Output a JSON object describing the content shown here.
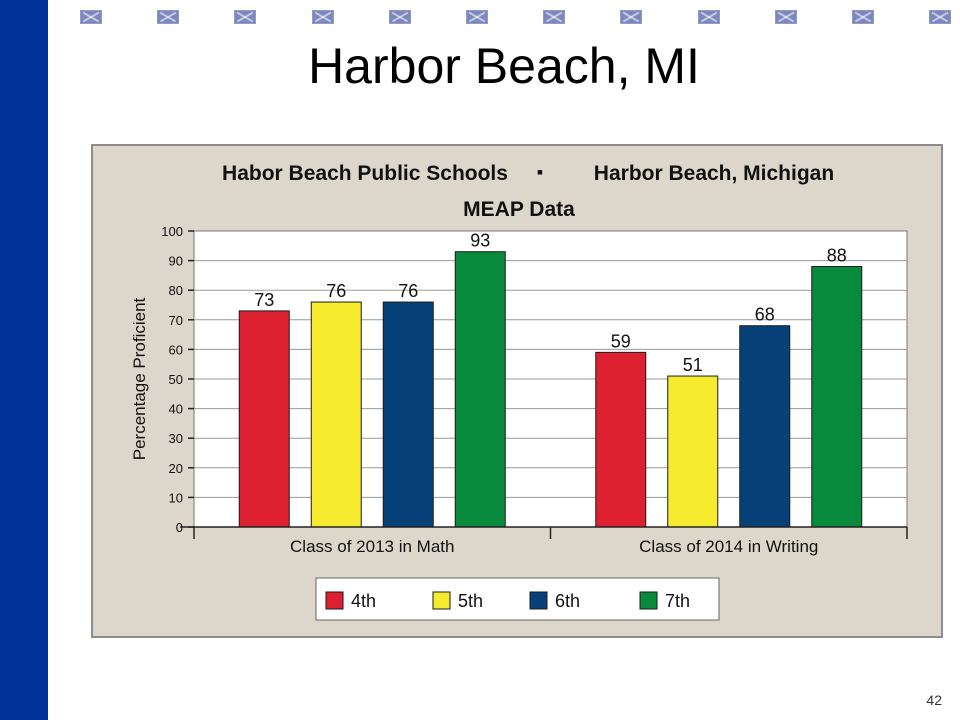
{
  "slide": {
    "title": "Harbor Beach, MI",
    "page_number": "42"
  },
  "colors": {
    "left_bar": "#003399",
    "deco_square": "#7b87bd",
    "panel_background": "#ddd6cb",
    "series": [
      "#dc2030",
      "#f6eb2e",
      "#064277",
      "#078a3c"
    ]
  },
  "chart_data": {
    "type": "bar",
    "title": "Habor Beach Public Schools",
    "title_separator": "▪",
    "title_right": "Harbor Beach, Michigan",
    "subtitle": "MEAP Data",
    "xlabel": "",
    "ylabel": "Percentage Proficient",
    "ylim": [
      0,
      100
    ],
    "yticks": [
      0,
      10,
      20,
      30,
      40,
      50,
      60,
      70,
      80,
      90,
      100
    ],
    "grid": true,
    "legend_position": "bottom",
    "categories": [
      "Class of 2013 in Math",
      "Class of 2014 in Writing"
    ],
    "series": [
      {
        "name": "4th",
        "values": [
          73,
          59
        ]
      },
      {
        "name": "5th",
        "values": [
          76,
          51
        ]
      },
      {
        "name": "6th",
        "values": [
          76,
          68
        ]
      },
      {
        "name": "7th",
        "values": [
          93,
          88
        ]
      }
    ],
    "data_labels": true
  }
}
